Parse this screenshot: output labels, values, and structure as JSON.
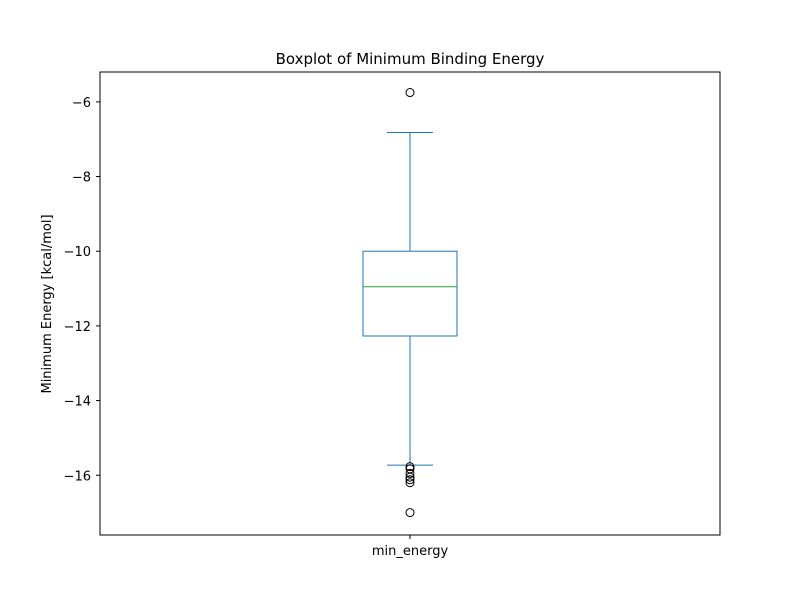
{
  "chart_data": {
    "type": "box",
    "title": "Boxplot of Minimum Binding Energy",
    "xlabel": "",
    "ylabel": "Minimum Energy [kcal/mol]",
    "categories": [
      "min_energy"
    ],
    "ylim": [
      -17.6,
      -5.2
    ],
    "yticks": [
      -6,
      -8,
      -10,
      -12,
      -14,
      -16
    ],
    "ytick_labels": [
      "−6",
      "−8",
      "−10",
      "−12",
      "−14",
      "−16"
    ],
    "box": {
      "whisker_high": -6.82,
      "q3": -10.0,
      "median": -10.95,
      "q1": -12.27,
      "whisker_low": -15.73
    },
    "outliers": [
      -5.75,
      -15.77,
      -15.83,
      -15.95,
      -16.05,
      -16.12,
      -16.2,
      -17.0
    ],
    "colors": {
      "box": "#1f77b4",
      "median": "#2ca02c",
      "outlier": "#000000"
    },
    "grid": false,
    "legend": "none"
  }
}
